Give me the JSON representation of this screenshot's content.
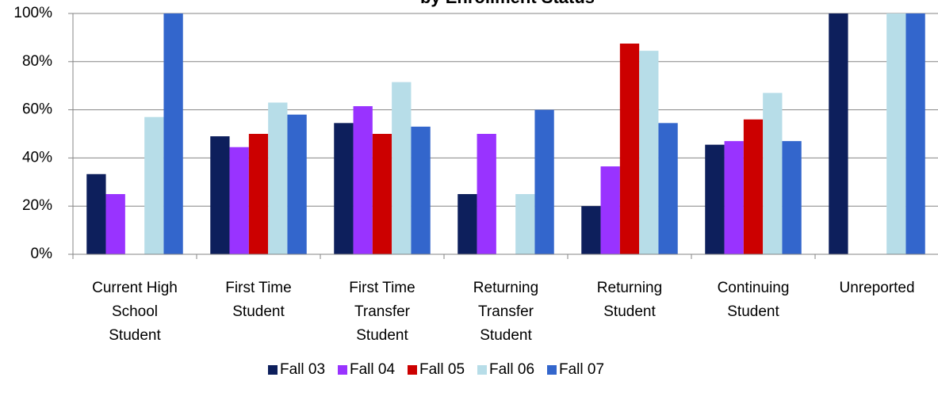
{
  "chart_data": {
    "type": "bar",
    "title": "by Enrollment Status",
    "categories": [
      "Current High School Student",
      "First Time Student",
      "First Time Transfer Student",
      "Returning Transfer Student",
      "Returning Student",
      "Continuing Student",
      "Unreported"
    ],
    "series": [
      {
        "name": "Fall 03",
        "color": "#0d1f5c",
        "values": [
          33.3,
          49,
          54.5,
          25,
          20,
          45.5,
          100
        ]
      },
      {
        "name": "Fall 04",
        "color": "#9933ff",
        "values": [
          25,
          44.5,
          61.5,
          50,
          36.5,
          47,
          0
        ]
      },
      {
        "name": "Fall 05",
        "color": "#cc0000",
        "values": [
          0,
          50,
          50,
          0,
          87.5,
          56,
          0
        ]
      },
      {
        "name": "Fall 06",
        "color": "#b7dde8",
        "values": [
          57,
          63,
          71.5,
          25,
          84.5,
          67,
          100
        ]
      },
      {
        "name": "Fall 07",
        "color": "#3366cc",
        "values": [
          100,
          58,
          53,
          60,
          54.5,
          47,
          100
        ]
      }
    ],
    "ylim": [
      0,
      100
    ],
    "yticks": [
      {
        "value": 0,
        "label": "0%"
      },
      {
        "value": 20,
        "label": "20%"
      },
      {
        "value": 40,
        "label": "40%"
      },
      {
        "value": 60,
        "label": "60%"
      },
      {
        "value": 80,
        "label": "80%"
      },
      {
        "value": 100,
        "label": "100%"
      }
    ],
    "grid": true,
    "legend": "bottom"
  }
}
